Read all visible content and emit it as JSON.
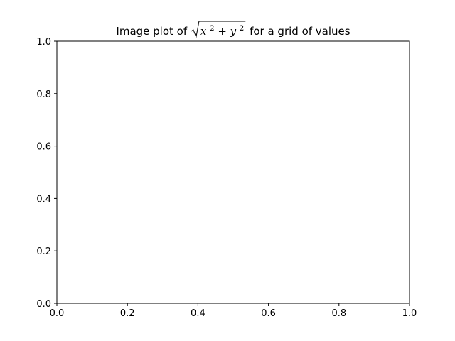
{
  "chart_data": {
    "type": "heatmap",
    "title": {
      "prefix": "Image plot of ",
      "math_x": "x",
      "math_exp_x": "2",
      "math_plus": " + ",
      "math_y": "y",
      "math_exp_y": "2",
      "suffix": " for a grid of values"
    },
    "xlabel": "",
    "ylabel": "",
    "xlim": [
      0.0,
      1.0
    ],
    "ylim": [
      0.0,
      1.0
    ],
    "x_ticks": [
      0.0,
      0.2,
      0.4,
      0.6,
      0.8,
      1.0
    ],
    "y_ticks": [
      0.0,
      0.2,
      0.4,
      0.6,
      0.8,
      1.0
    ],
    "x_tick_labels": [
      "0.0",
      "0.2",
      "0.4",
      "0.6",
      "0.8",
      "1.0"
    ],
    "y_tick_labels": [
      "0.0",
      "0.2",
      "0.4",
      "0.6",
      "0.8",
      "1.0"
    ],
    "grid": false,
    "legend": "none",
    "data": []
  }
}
